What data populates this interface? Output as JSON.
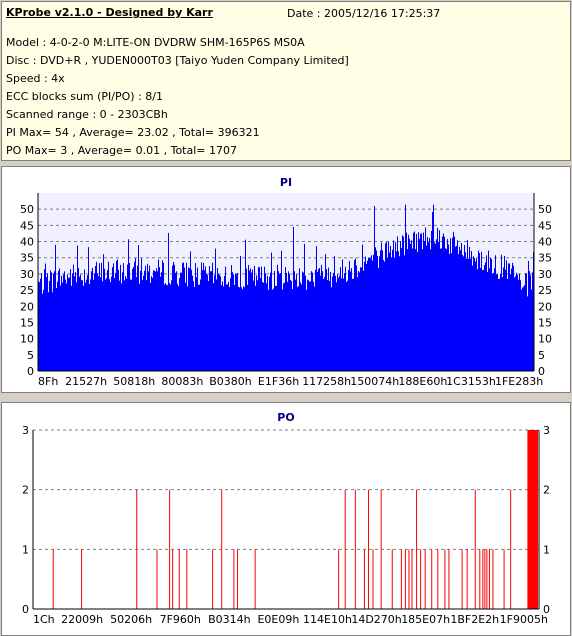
{
  "header": {
    "title": "KProbe v2.1.0 - Designed by Karr",
    "date": "Date : 2005/12/16 17:25:37",
    "lines": [
      "Model : 4-0-2-0 M:LITE-ON DVDRW SHM-165P6S MS0A",
      "Disc : DVD+R , YUDEN000T03 [Taiyo Yuden Company Limited]",
      "Speed : 4x",
      "ECC blocks sum (PI/PO) : 8/1",
      "Scanned range : 0 - 2303CBh",
      "PI Max= 54 , Average= 23.02 , Total= 396321",
      "PO Max= 3 , Average= 0.01 , Total= 1707"
    ]
  },
  "colors": {
    "pi_bars": "#0000ff",
    "po_bars": "#ff0000",
    "po_last_bars": "#ff0000",
    "title": "#000080",
    "grid": "#808080",
    "plot_bg_pi": "#f0f0ff",
    "plot_bg_po": "#ffffff"
  },
  "chart_data": [
    {
      "type": "bar",
      "title": "PI",
      "ylim": [
        0,
        55
      ],
      "yticks": [
        0,
        5,
        10,
        15,
        20,
        25,
        30,
        35,
        40,
        45,
        50
      ],
      "xticklabels": [
        "8Fh",
        "21527h",
        "50818h",
        "80083h",
        "B0380h",
        "E1F36h",
        "117258h",
        "150074h",
        "188E60h",
        "1C3153h",
        "1FE283h"
      ],
      "grid": "dashed horizontal",
      "x_range": [
        0,
        1
      ],
      "profile_x": [
        0,
        0.05,
        0.1,
        0.2,
        0.3,
        0.4,
        0.5,
        0.55,
        0.6,
        0.65,
        0.7,
        0.75,
        0.8,
        0.85,
        0.9,
        0.95,
        0.98,
        1.0
      ],
      "profile_y": [
        27,
        29,
        30,
        31,
        30,
        29,
        29,
        29,
        30,
        33,
        37,
        40,
        42,
        38,
        34,
        31,
        26,
        28
      ],
      "max": 54,
      "average": 23.02
    },
    {
      "type": "bar",
      "title": "PO",
      "ylim": [
        0,
        3
      ],
      "yticks": [
        0,
        1,
        2,
        3
      ],
      "xticklabels": [
        "1Ch",
        "22009h",
        "50206h",
        "7F960h",
        "B0314h",
        "E0E09h",
        "114E10h",
        "14D270h",
        "185E07h",
        "1BF2E2h",
        "1F9005h"
      ],
      "grid": "dashed horizontal",
      "x": [
        0.04,
        0.096,
        0.205,
        0.245,
        0.27,
        0.276,
        0.289,
        0.304,
        0.355,
        0.373,
        0.397,
        0.404,
        0.439,
        0.604,
        0.617,
        0.637,
        0.655,
        0.663,
        0.672,
        0.688,
        0.71,
        0.728,
        0.736,
        0.743,
        0.749,
        0.758,
        0.766,
        0.775,
        0.788,
        0.8,
        0.814,
        0.822,
        0.848,
        0.858,
        0.874,
        0.883,
        0.889,
        0.893,
        0.897,
        0.902,
        0.909,
        0.931,
        0.944,
        0.98,
        0.985,
        0.99,
        0.995
      ],
      "values": [
        1,
        1,
        2,
        1,
        2,
        1,
        1,
        1,
        1,
        2,
        1,
        1,
        1,
        1,
        2,
        2,
        1,
        2,
        1,
        2,
        1,
        1,
        1,
        1,
        1,
        2,
        1,
        1,
        1,
        1,
        1,
        1,
        1,
        1,
        2,
        1,
        1,
        1,
        1,
        1,
        1,
        1,
        2,
        3,
        3,
        3,
        3
      ],
      "max": 3,
      "average": 0.01
    }
  ]
}
